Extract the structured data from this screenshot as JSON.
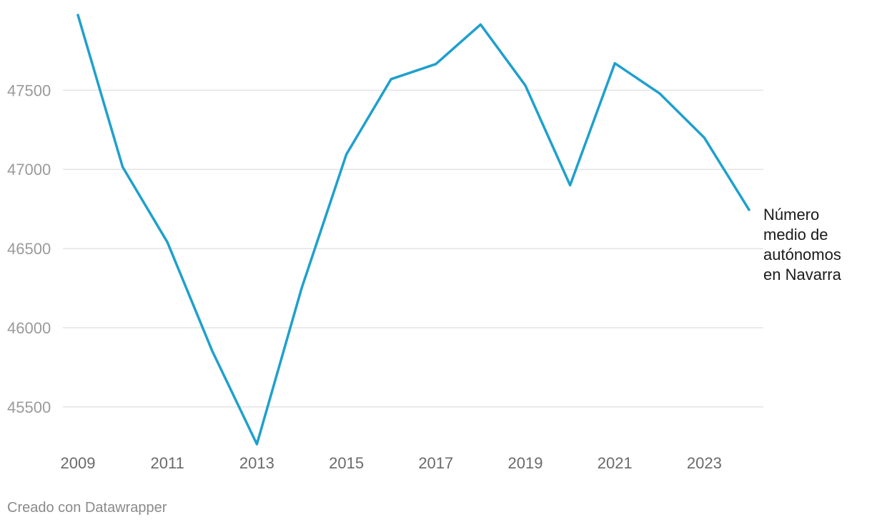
{
  "chart_data": {
    "type": "line",
    "x": [
      2009,
      2010,
      2011,
      2012,
      2013,
      2014,
      2015,
      2016,
      2017,
      2018,
      2019,
      2020,
      2021,
      2022,
      2023,
      2024
    ],
    "series": [
      {
        "name": "Número medio de autónomos en Navarra",
        "label_lines": [
          "Número",
          "medio de",
          "autónomos",
          "en Navarra"
        ],
        "values": [
          47975,
          47015,
          46540,
          45855,
          45265,
          46250,
          47095,
          47570,
          47665,
          47915,
          47530,
          46900,
          47670,
          47480,
          47200,
          46745
        ],
        "color": "#1fa0cd"
      }
    ],
    "x_tick_labels": [
      "2009",
      "2011",
      "2013",
      "2015",
      "2017",
      "2019",
      "2021",
      "2023"
    ],
    "y_ticks": [
      45500,
      46000,
      46500,
      47000,
      47500
    ],
    "y_tick_labels": [
      "45500",
      "46000",
      "46500",
      "47000",
      "47500"
    ],
    "ylim": [
      45265,
      47975
    ],
    "xlim": [
      2009,
      2024
    ],
    "grid": true,
    "title": "",
    "xlabel": "",
    "ylabel": ""
  },
  "footer": {
    "credit": "Creado con Datawrapper"
  },
  "colors": {
    "line": "#1fa0cd",
    "grid": "#e3e3e3"
  }
}
